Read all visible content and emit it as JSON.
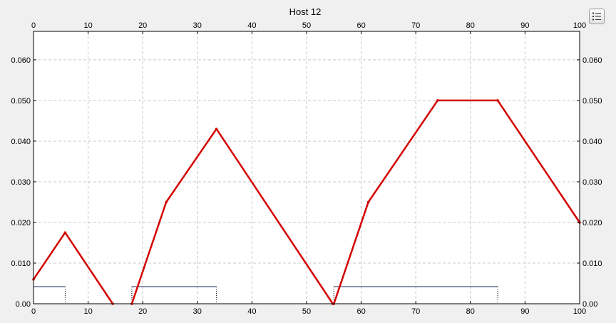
{
  "chart_data": {
    "type": "line",
    "title": "Host 12",
    "xlim": [
      0,
      100
    ],
    "ylim": [
      0,
      0.067
    ],
    "x_ticks": [
      0,
      10,
      20,
      30,
      40,
      50,
      60,
      70,
      80,
      90,
      100
    ],
    "y_ticks": [
      0.0,
      0.01,
      0.02,
      0.03,
      0.04,
      0.05,
      0.06
    ],
    "y_tick_labels": [
      "0.00",
      "0.010",
      "0.020",
      "0.030",
      "0.040",
      "0.050",
      "0.060"
    ],
    "grid": true,
    "series": [
      {
        "color": "#d40000",
        "segments": [
          [
            [
              0,
              0.006
            ],
            [
              5.8,
              0.0175
            ],
            [
              14.5,
              0.0
            ]
          ],
          [
            [
              18,
              0.0
            ],
            [
              24.3,
              0.025
            ],
            [
              33.5,
              0.043
            ],
            [
              54.8,
              0.0
            ]
          ],
          [
            [
              55,
              0.0
            ],
            [
              61.3,
              0.025
            ],
            [
              74,
              0.05
            ],
            [
              85,
              0.05
            ],
            [
              100,
              0.02
            ]
          ]
        ]
      }
    ],
    "intervals": [
      {
        "start": 0,
        "end": 5.8,
        "level": 0.0042
      },
      {
        "start": 18,
        "end": 33.5,
        "level": 0.0042
      },
      {
        "start": 55,
        "end": 85,
        "level": 0.0042
      }
    ]
  },
  "legend_button": {
    "icon": "legend-list-icon"
  }
}
